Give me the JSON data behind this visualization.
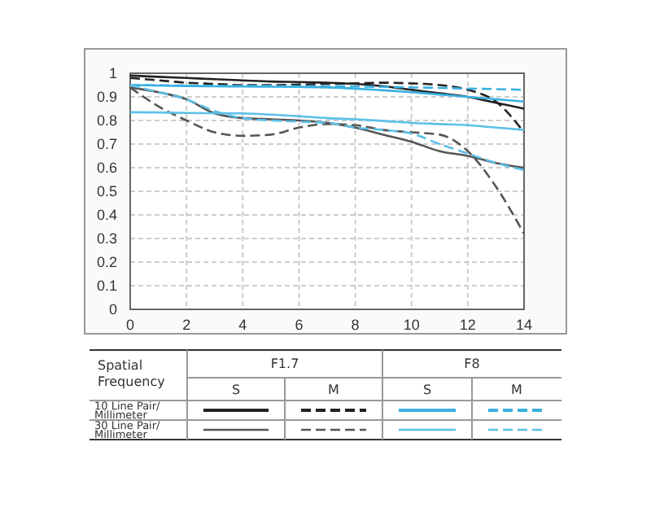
{
  "chart_data": {
    "type": "line",
    "x": [
      0,
      1,
      2,
      3,
      4,
      5,
      6,
      7,
      8,
      9,
      10,
      11,
      12,
      13,
      14
    ],
    "xlim": [
      0,
      14
    ],
    "xticks": [
      0,
      2,
      4,
      6,
      8,
      10,
      12,
      14
    ],
    "ylim": [
      0,
      1
    ],
    "yticks": [
      0,
      0.1,
      0.2,
      0.3,
      0.4,
      0.5,
      0.6,
      0.7,
      0.8,
      0.9,
      1
    ],
    "grid": true,
    "marker": "none",
    "series": [
      {
        "color": "#222222",
        "line_style": "solid",
        "values": [
          0.99,
          0.985,
          0.98,
          0.975,
          0.97,
          0.965,
          0.963,
          0.96,
          0.955,
          0.945,
          0.93,
          0.915,
          0.9,
          0.875,
          0.85
        ]
      },
      {
        "color": "#222222",
        "line_style": "dashed",
        "values": [
          0.98,
          0.97,
          0.96,
          0.955,
          0.95,
          0.95,
          0.952,
          0.955,
          0.957,
          0.96,
          0.957,
          0.95,
          0.93,
          0.88,
          0.75
        ]
      },
      {
        "color": "#3ab0e0",
        "line_style": "solid",
        "values": [
          0.95,
          0.948,
          0.946,
          0.945,
          0.944,
          0.943,
          0.942,
          0.94,
          0.935,
          0.928,
          0.92,
          0.91,
          0.9,
          0.89,
          0.88
        ]
      },
      {
        "color": "#3ab0e0",
        "line_style": "dashed",
        "values": [
          0.95,
          0.949,
          0.948,
          0.947,
          0.946,
          0.946,
          0.945,
          0.945,
          0.944,
          0.942,
          0.94,
          0.938,
          0.935,
          0.933,
          0.93
        ]
      },
      {
        "color": "#555555",
        "line_style": "solid",
        "values": [
          0.94,
          0.92,
          0.89,
          0.83,
          0.81,
          0.805,
          0.8,
          0.79,
          0.77,
          0.74,
          0.71,
          0.67,
          0.65,
          0.62,
          0.6
        ]
      },
      {
        "color": "#555555",
        "line_style": "dashed",
        "values": [
          0.94,
          0.86,
          0.8,
          0.75,
          0.735,
          0.74,
          0.77,
          0.785,
          0.78,
          0.76,
          0.75,
          0.74,
          0.67,
          0.52,
          0.32
        ]
      },
      {
        "color": "#5bc0e8",
        "line_style": "solid",
        "values": [
          0.835,
          0.834,
          0.832,
          0.831,
          0.83,
          0.825,
          0.818,
          0.81,
          0.805,
          0.798,
          0.79,
          0.785,
          0.78,
          0.77,
          0.76
        ]
      },
      {
        "color": "#5bc0e8",
        "line_style": "dashed",
        "values": [
          0.95,
          0.92,
          0.89,
          0.84,
          0.81,
          0.8,
          0.795,
          0.79,
          0.77,
          0.76,
          0.745,
          0.7,
          0.66,
          0.62,
          0.59
        ]
      }
    ],
    "annotations": [
      "Spatial Frequency",
      "F1.7",
      "F8",
      "S",
      "M",
      "S",
      "M",
      "10 Line Pair/ Millimeter",
      "30 Line Pair/ Millimeter"
    ]
  }
}
